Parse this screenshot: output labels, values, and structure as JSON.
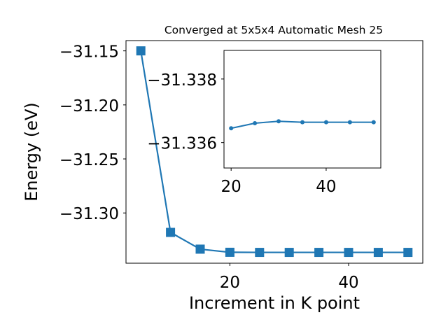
{
  "chart_data": [
    {
      "type": "line",
      "title": "Converged at 5x5x4 Automatic Mesh 25",
      "xlabel": "Increment in K point",
      "ylabel": "Energy (eV)",
      "xlim": [
        2.5,
        52.5
      ],
      "ylim": [
        -31.3465,
        -31.1405
      ],
      "xticks": [
        20,
        40
      ],
      "xtick_labels": [
        "20",
        "40"
      ],
      "yticks": [
        -31.15,
        -31.2,
        -31.25,
        -31.3
      ],
      "ytick_labels": [
        "−31.15",
        "−31.20",
        "−31.25",
        "−31.30"
      ],
      "marker": "square",
      "grid": false,
      "series": [
        {
          "color": "#1f77b4",
          "x": [
            5,
            10,
            15,
            20,
            25,
            30,
            35,
            40,
            45,
            50
          ],
          "y": [
            -31.15,
            -31.318,
            -31.3335,
            -31.3364,
            -31.3365,
            -31.3365,
            -31.3365,
            -31.3365,
            -31.3365,
            -31.3365
          ]
        }
      ]
    },
    {
      "type": "line",
      "title": "",
      "xlabel": "",
      "ylabel": "",
      "xlim": [
        18.5,
        51.5
      ],
      "ylim": [
        -31.3352,
        -31.3389
      ],
      "xticks": [
        20,
        40
      ],
      "xtick_labels": [
        "20",
        "40"
      ],
      "yticks": [
        -31.338,
        -31.336
      ],
      "ytick_labels": [
        "−31.338",
        "−31.336"
      ],
      "marker": "circle",
      "grid": false,
      "series": [
        {
          "color": "#1f77b4",
          "x": [
            20,
            25,
            30,
            35,
            40,
            45,
            50
          ],
          "y": [
            -31.33645,
            -31.33661,
            -31.33667,
            -31.33664,
            -31.33664,
            -31.33664,
            -31.33664
          ]
        }
      ]
    }
  ]
}
